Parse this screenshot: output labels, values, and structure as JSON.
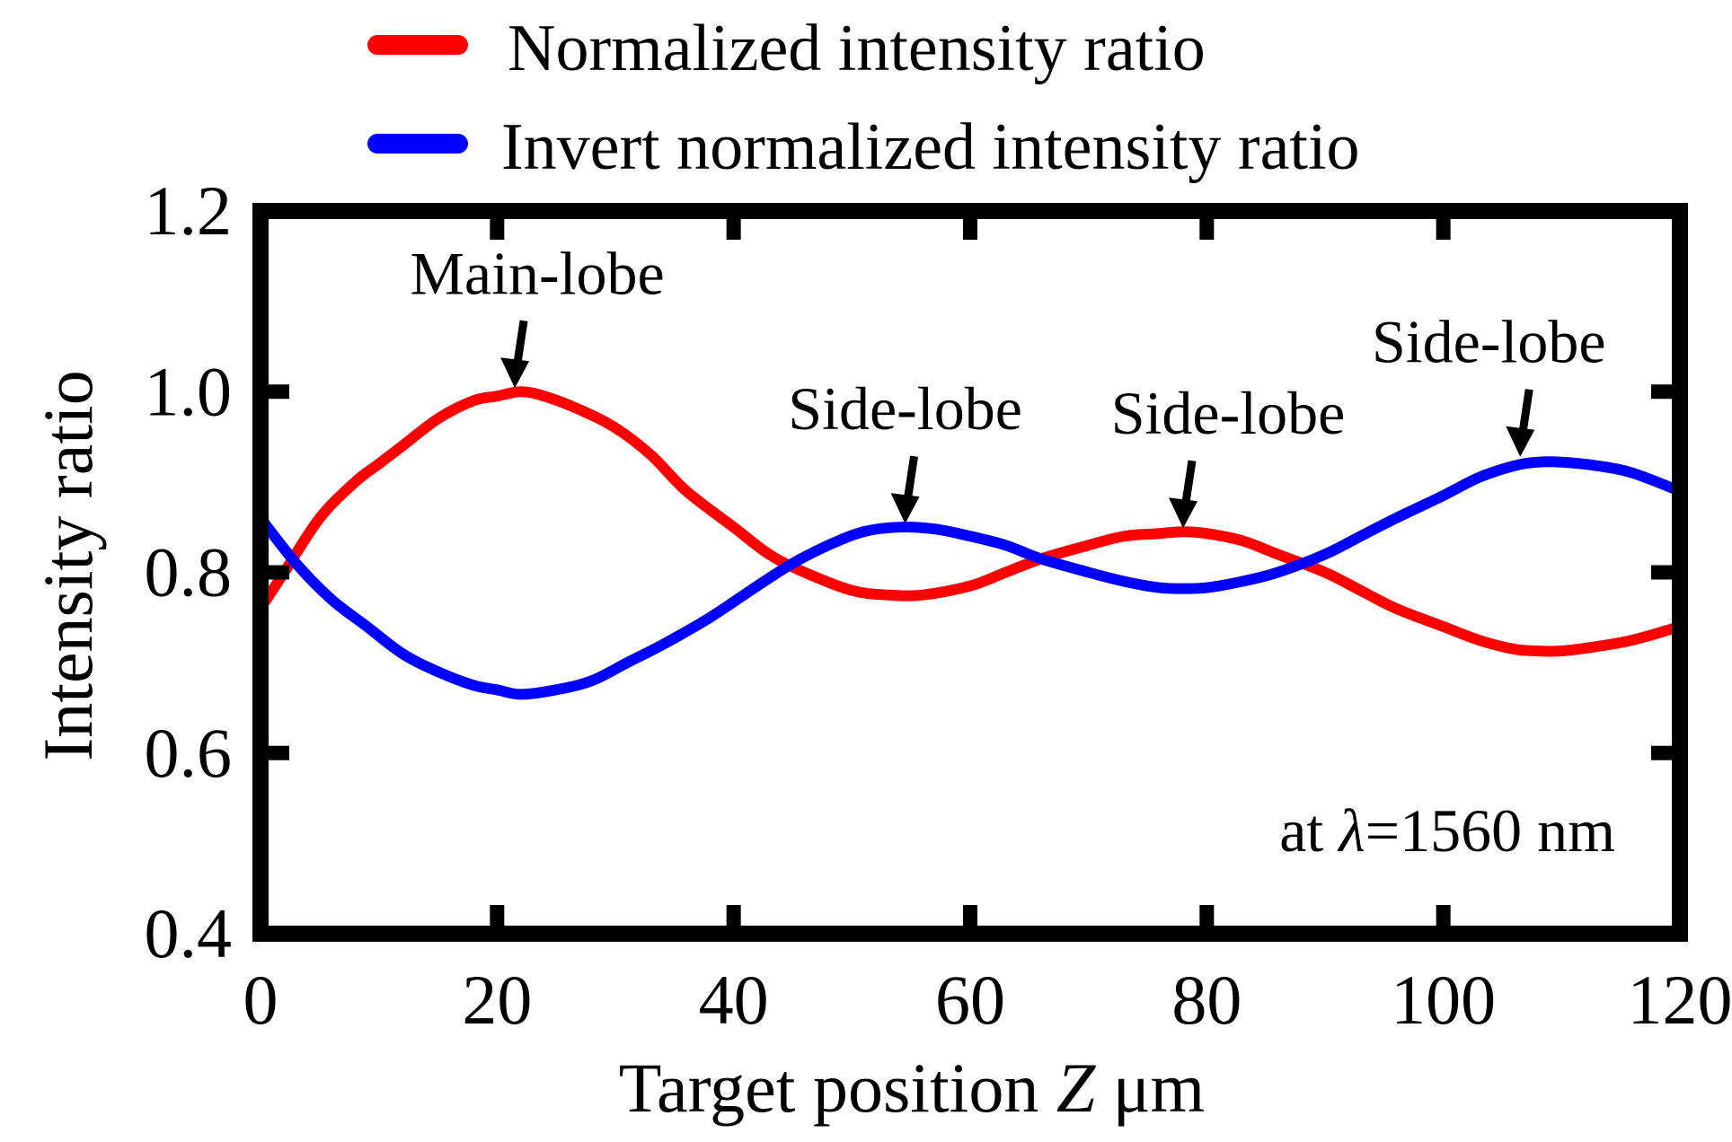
{
  "chart_data": {
    "type": "line",
    "title": "",
    "xlabel": "Target position",
    "xlabel_var": "Z",
    "xlabel_unit": "μm",
    "ylabel": "Intensity ratio",
    "xlim": [
      0,
      120
    ],
    "ylim": [
      0.4,
      1.2
    ],
    "x_ticks": [
      0,
      20,
      40,
      60,
      80,
      100,
      120
    ],
    "x_tick_labels": [
      "0",
      "20",
      "40",
      "60",
      "80",
      "100",
      "120"
    ],
    "y_ticks": [
      0.4,
      0.6,
      0.8,
      1.0,
      1.2
    ],
    "y_tick_labels": [
      "0.4",
      "0.6",
      "0.8",
      "1.0",
      "1.2"
    ],
    "grid": false,
    "legend_position": "top",
    "series": [
      {
        "name": "Normalized intensity ratio",
        "color": "#ff0000",
        "x": [
          0,
          2,
          5,
          8,
          10,
          12,
          15,
          18,
          20,
          22,
          24,
          27,
          30,
          33,
          36,
          40,
          43,
          46,
          50,
          53,
          56,
          60,
          63,
          66,
          70,
          73,
          76,
          78,
          80,
          83,
          86,
          90,
          93,
          96,
          100,
          103,
          106,
          108,
          110,
          113,
          116,
          120
        ],
        "values": [
          0.76,
          0.8,
          0.86,
          0.9,
          0.92,
          0.94,
          0.97,
          0.99,
          0.995,
          1.0,
          0.995,
          0.98,
          0.96,
          0.93,
          0.89,
          0.85,
          0.82,
          0.8,
          0.78,
          0.775,
          0.775,
          0.785,
          0.8,
          0.815,
          0.83,
          0.84,
          0.843,
          0.845,
          0.843,
          0.835,
          0.82,
          0.8,
          0.78,
          0.76,
          0.74,
          0.725,
          0.715,
          0.713,
          0.713,
          0.718,
          0.725,
          0.74
        ]
      },
      {
        "name": "Invert normalized intensity ratio",
        "color": "#0000ff",
        "x": [
          0,
          3,
          6,
          9,
          12,
          15,
          18,
          20,
          22,
          25,
          28,
          31,
          34,
          38,
          42,
          45,
          48,
          51,
          54,
          57,
          60,
          63,
          66,
          70,
          73,
          76,
          78,
          80,
          83,
          86,
          90,
          93,
          96,
          100,
          103,
          106,
          108,
          110,
          113,
          116,
          120
        ],
        "values": [
          0.86,
          0.81,
          0.77,
          0.74,
          0.71,
          0.69,
          0.675,
          0.67,
          0.665,
          0.67,
          0.68,
          0.7,
          0.72,
          0.75,
          0.785,
          0.81,
          0.83,
          0.845,
          0.85,
          0.848,
          0.84,
          0.83,
          0.815,
          0.8,
          0.79,
          0.783,
          0.782,
          0.783,
          0.79,
          0.8,
          0.82,
          0.84,
          0.86,
          0.885,
          0.905,
          0.918,
          0.922,
          0.922,
          0.918,
          0.91,
          0.89
        ]
      }
    ],
    "annotations": [
      {
        "text": "Main-lobe",
        "x": 21.5,
        "y": 0.998
      },
      {
        "text": "Side-lobe",
        "x": 54.5,
        "y": 0.848
      },
      {
        "text": "Side-lobe",
        "x": 78,
        "y": 0.843
      },
      {
        "text": "Side-lobe",
        "x": 106.5,
        "y": 0.922
      }
    ],
    "condition_label": {
      "prefix": "at ",
      "symbol": "λ",
      "suffix": "=1560 nm",
      "color": "#ff0000"
    }
  }
}
